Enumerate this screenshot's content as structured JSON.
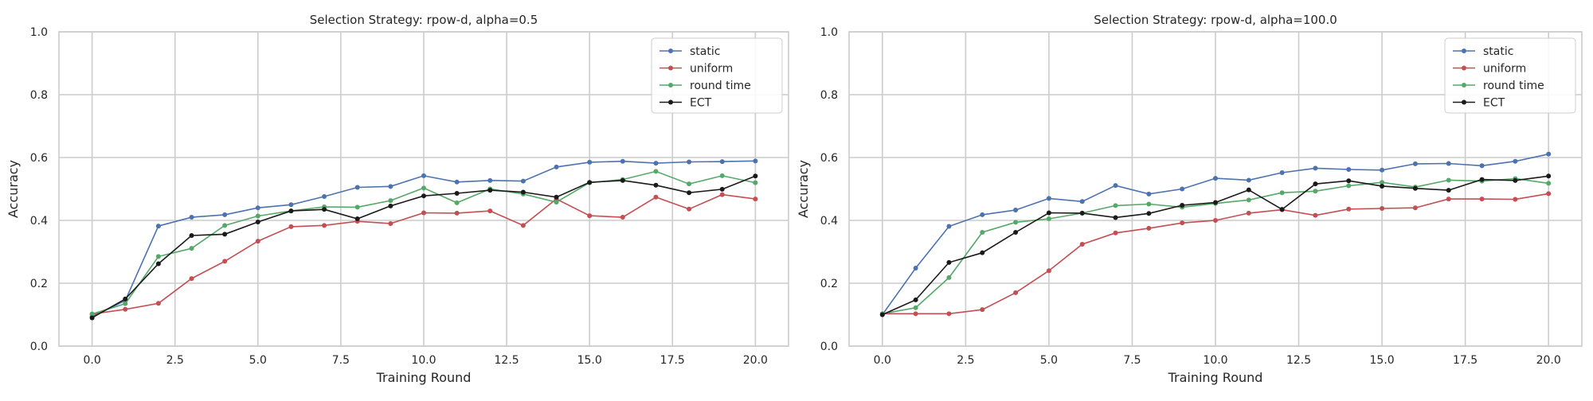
{
  "chart_data": [
    {
      "type": "line",
      "title": "Selection Strategy: rpow-d, alpha=0.5",
      "xlabel": "Training Round",
      "ylabel": "Accuracy",
      "xlim": [
        -1,
        21
      ],
      "ylim": [
        0,
        1
      ],
      "xticks": [
        0,
        2.5,
        5,
        7.5,
        10,
        12.5,
        15,
        17.5,
        20
      ],
      "xtick_labels": [
        "0.0",
        "2.5",
        "5.0",
        "7.5",
        "10.0",
        "12.5",
        "15.0",
        "17.5",
        "20.0"
      ],
      "yticks": [
        0,
        0.2,
        0.4,
        0.6,
        0.8,
        1.0
      ],
      "ytick_labels": [
        "0.0",
        "0.2",
        "0.4",
        "0.6",
        "0.8",
        "1.0"
      ],
      "grid": true,
      "legend_position": "top-right",
      "x": [
        0,
        1,
        2,
        3,
        4,
        5,
        6,
        7,
        8,
        9,
        10,
        11,
        12,
        13,
        14,
        15,
        16,
        17,
        18,
        19,
        20
      ],
      "series": [
        {
          "name": "static",
          "color": "#4c72b0",
          "values": [
            0.094,
            0.145,
            0.382,
            0.41,
            0.418,
            0.44,
            0.45,
            0.476,
            0.505,
            0.508,
            0.542,
            0.522,
            0.527,
            0.525,
            0.57,
            0.585,
            0.588,
            0.582,
            0.586,
            0.587,
            0.589
          ]
        },
        {
          "name": "uniform",
          "color": "#c44e52",
          "values": [
            0.102,
            0.117,
            0.136,
            0.215,
            0.27,
            0.334,
            0.38,
            0.384,
            0.397,
            0.39,
            0.424,
            0.423,
            0.43,
            0.384,
            0.468,
            0.415,
            0.41,
            0.474,
            0.436,
            0.482,
            0.468
          ]
        },
        {
          "name": "round time",
          "color": "#55a868",
          "values": [
            0.102,
            0.135,
            0.285,
            0.311,
            0.384,
            0.414,
            0.43,
            0.443,
            0.442,
            0.463,
            0.503,
            0.456,
            0.5,
            0.484,
            0.458,
            0.52,
            0.53,
            0.556,
            0.516,
            0.542,
            0.52
          ]
        },
        {
          "name": "ECT",
          "color": "#1a1a1a",
          "values": [
            0.09,
            0.15,
            0.262,
            0.352,
            0.356,
            0.395,
            0.43,
            0.435,
            0.405,
            0.446,
            0.478,
            0.486,
            0.496,
            0.49,
            0.474,
            0.521,
            0.527,
            0.512,
            0.488,
            0.499,
            0.541
          ]
        }
      ]
    },
    {
      "type": "line",
      "title": "Selection Strategy: rpow-d, alpha=100.0",
      "xlabel": "Training Round",
      "ylabel": "Accuracy",
      "xlim": [
        -1,
        21
      ],
      "ylim": [
        0,
        1
      ],
      "xticks": [
        0,
        2.5,
        5,
        7.5,
        10,
        12.5,
        15,
        17.5,
        20
      ],
      "xtick_labels": [
        "0.0",
        "2.5",
        "5.0",
        "7.5",
        "10.0",
        "12.5",
        "15.0",
        "17.5",
        "20.0"
      ],
      "yticks": [
        0,
        0.2,
        0.4,
        0.6,
        0.8,
        1.0
      ],
      "ytick_labels": [
        "0.0",
        "0.2",
        "0.4",
        "0.6",
        "0.8",
        "1.0"
      ],
      "grid": true,
      "legend_position": "top-right",
      "x": [
        0,
        1,
        2,
        3,
        4,
        5,
        6,
        7,
        8,
        9,
        10,
        11,
        12,
        13,
        14,
        15,
        16,
        17,
        18,
        19,
        20
      ],
      "series": [
        {
          "name": "static",
          "color": "#4c72b0",
          "values": [
            0.1,
            0.248,
            0.381,
            0.418,
            0.433,
            0.47,
            0.46,
            0.511,
            0.484,
            0.5,
            0.534,
            0.528,
            0.552,
            0.566,
            0.562,
            0.56,
            0.58,
            0.581,
            0.574,
            0.588,
            0.611
          ]
        },
        {
          "name": "uniform",
          "color": "#c44e52",
          "values": [
            0.103,
            0.103,
            0.103,
            0.116,
            0.17,
            0.24,
            0.324,
            0.36,
            0.375,
            0.392,
            0.4,
            0.423,
            0.434,
            0.416,
            0.436,
            0.438,
            0.44,
            0.468,
            0.468,
            0.467,
            0.485
          ]
        },
        {
          "name": "round time",
          "color": "#55a868",
          "values": [
            0.103,
            0.122,
            0.218,
            0.362,
            0.394,
            0.405,
            0.423,
            0.447,
            0.452,
            0.442,
            0.454,
            0.465,
            0.488,
            0.493,
            0.51,
            0.521,
            0.506,
            0.528,
            0.525,
            0.533,
            0.518
          ]
        },
        {
          "name": "ECT",
          "color": "#1a1a1a",
          "values": [
            0.1,
            0.147,
            0.266,
            0.297,
            0.362,
            0.424,
            0.423,
            0.409,
            0.422,
            0.448,
            0.457,
            0.497,
            0.435,
            0.516,
            0.526,
            0.509,
            0.502,
            0.496,
            0.53,
            0.527,
            0.541
          ]
        }
      ]
    }
  ]
}
